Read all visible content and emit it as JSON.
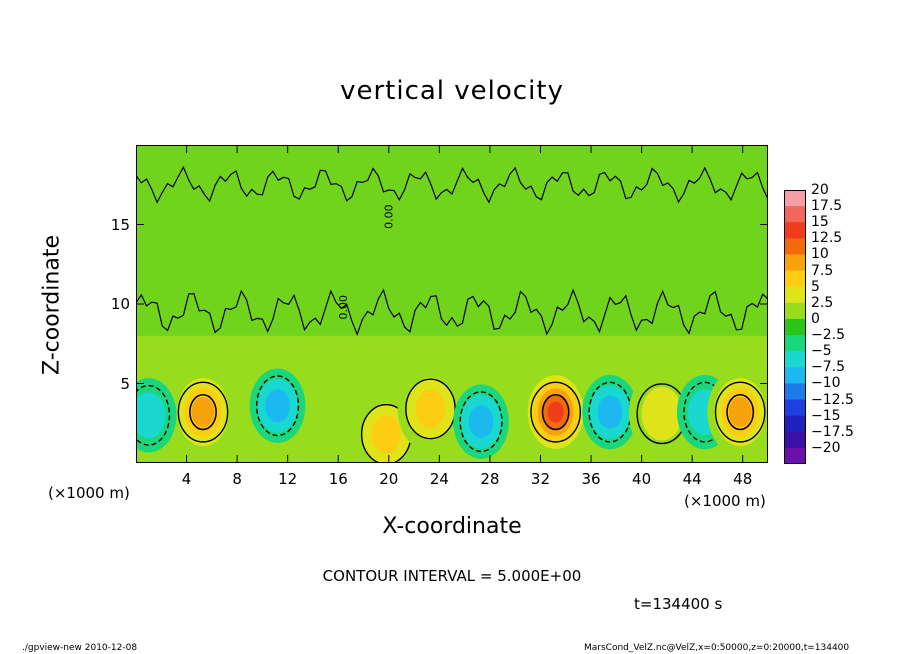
{
  "chart_data": {
    "type": "heatmap",
    "title": "vertical velocity",
    "xlabel": "X-coordinate",
    "ylabel": "Z-coordinate",
    "x_unit_label": "(×1000 m)",
    "x_ticks": [
      "4",
      "8",
      "12",
      "16",
      "20",
      "24",
      "28",
      "32",
      "36",
      "40",
      "44",
      "48"
    ],
    "y_ticks": [
      "5",
      "10",
      "15"
    ],
    "xlim": [
      0,
      50
    ],
    "ylim": [
      0,
      20
    ],
    "contour_interval_text": "CONTOUR INTERVAL = 5.000E+00",
    "time_text": "t=134400 s",
    "contour_labels": [
      "0.00",
      "0.00"
    ],
    "colorbar": {
      "levels": [
        "20",
        "17.5",
        "15",
        "12.5",
        "10",
        "7.5",
        "5",
        "2.5",
        "0",
        "−2.5",
        "−5",
        "−7.5",
        "−10",
        "−12.5",
        "−15",
        "−17.5",
        "−20"
      ],
      "colors": [
        "#f49fa8",
        "#f2675a",
        "#ee3c1d",
        "#f26a0a",
        "#f8a20c",
        "#fccd12",
        "#dfe41a",
        "#98dc1e",
        "#29c61a",
        "#1ad67c",
        "#19d8cf",
        "#1cb8f0",
        "#1d7ae9",
        "#1f3fe0",
        "#1f20bd",
        "#3a10a8",
        "#6a10a8"
      ]
    },
    "features": [
      {
        "kind": "updraft",
        "x": 5.3,
        "z": 3.2,
        "peak": 10
      },
      {
        "kind": "downdraft",
        "x": 11.2,
        "z": 3.6,
        "peak": -7.5
      },
      {
        "kind": "updraft",
        "x": 19.8,
        "z": 1.8,
        "peak": 7.5
      },
      {
        "kind": "updraft",
        "x": 23.3,
        "z": 3.4,
        "peak": 7.5
      },
      {
        "kind": "downdraft",
        "x": 27.3,
        "z": 2.6,
        "peak": -7.5
      },
      {
        "kind": "updraft",
        "x": 33.2,
        "z": 3.2,
        "peak": 15
      },
      {
        "kind": "downdraft",
        "x": 37.5,
        "z": 3.2,
        "peak": -7.5
      },
      {
        "kind": "updraft",
        "x": 41.6,
        "z": 3.1,
        "peak": 5
      },
      {
        "kind": "downdraft",
        "x": 45,
        "z": 3.2,
        "peak": -5
      },
      {
        "kind": "updraft",
        "x": 47.8,
        "z": 3.2,
        "peak": 10
      },
      {
        "kind": "downdraft",
        "x": 1,
        "z": 3.0,
        "peak": -5
      }
    ]
  },
  "footer": {
    "left": "./gpview-new   2010-12-08",
    "right": "MarsCond_VelZ.nc@VelZ,x=0:50000,z=0:20000,t=134400"
  }
}
